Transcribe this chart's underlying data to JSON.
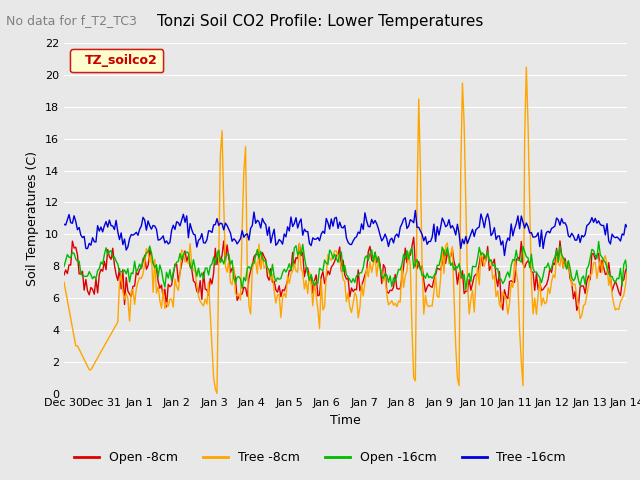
{
  "title": "Tonzi Soil CO2 Profile: Lower Temperatures",
  "subtitle": "No data for f_T2_TC3",
  "ylabel": "Soil Temperatures (C)",
  "xlabel": "Time",
  "legend_label": "TZ_soilco2",
  "ylim": [
    0,
    22
  ],
  "series_labels": [
    "Open -8cm",
    "Tree -8cm",
    "Open -16cm",
    "Tree -16cm"
  ],
  "series_colors": [
    "#dd0000",
    "#ffa500",
    "#00bb00",
    "#0000dd"
  ],
  "background_color": "#e8e8e8",
  "tick_labels": [
    "Dec 30",
    "Dec 31",
    "Jan 1",
    "Jan 2",
    "Jan 3",
    "Jan 4",
    "Jan 5",
    "Jan 6",
    "Jan 7",
    "Jan 8",
    "Jan 9",
    "Jan 10",
    "Jan 11",
    "Jan 12",
    "Jan 13",
    "Jan 14"
  ],
  "n_points": 336
}
